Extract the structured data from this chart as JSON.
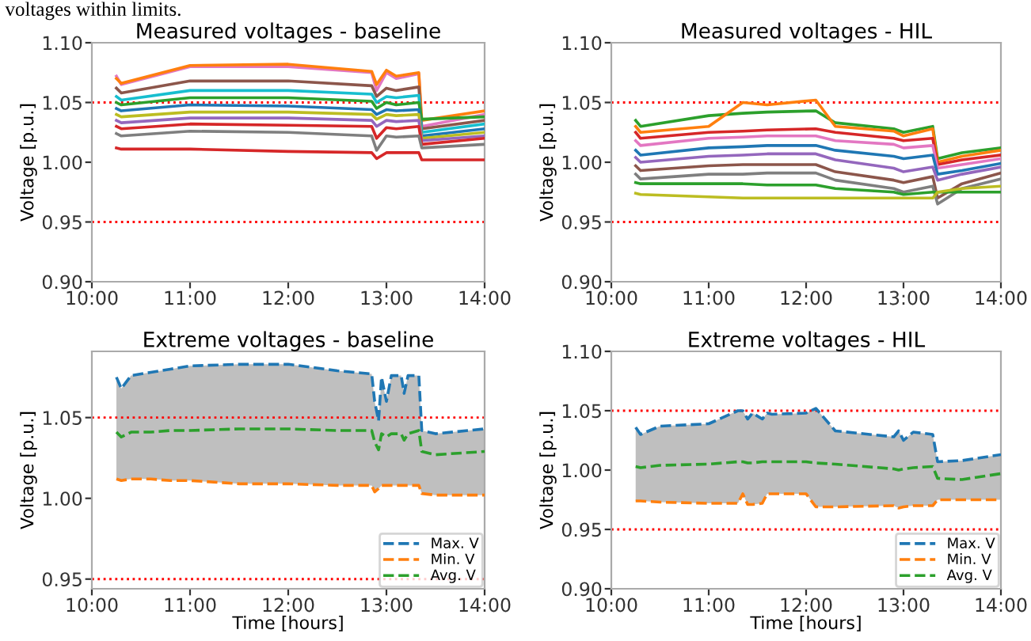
{
  "chart_data": [
    {
      "type": "line",
      "title": "Measured voltages - baseline",
      "ylabel": "Voltage [p.u.]",
      "annotations": [
        "voltages within limits."
      ],
      "x": [
        10.25,
        10.3,
        11.0,
        12.0,
        12.85,
        12.9,
        13.0,
        13.1,
        13.33,
        13.36,
        14.0
      ],
      "xlim": [
        10.0,
        14.0
      ],
      "xticks": [
        {
          "value": 10,
          "label": "10:00"
        },
        {
          "value": 11,
          "label": "11:00"
        },
        {
          "value": 12,
          "label": "12:00"
        },
        {
          "value": 13,
          "label": "13:00"
        },
        {
          "value": 14,
          "label": "14:00"
        }
      ],
      "ylim": [
        0.9,
        1.1
      ],
      "yticks": [
        {
          "value": 0.9,
          "label": "0.90"
        },
        {
          "value": 0.95,
          "label": "0.95"
        },
        {
          "value": 1.0,
          "label": "1.00"
        },
        {
          "value": 1.05,
          "label": "1.05"
        },
        {
          "value": 1.1,
          "label": "1.10"
        }
      ],
      "ref_lines": [
        {
          "axis": "y",
          "value": 1.05,
          "color": "#ff0000",
          "line_style": "dotted"
        },
        {
          "axis": "y",
          "value": 0.95,
          "color": "#ff0000",
          "line_style": "dotted"
        }
      ],
      "line_style": "solid",
      "series": [
        {
          "color": "#e377c2",
          "values": [
            1.072,
            1.065,
            1.08,
            1.08,
            1.075,
            1.06,
            1.075,
            1.07,
            1.074,
            1.03,
            1.04
          ]
        },
        {
          "color": "#ff7f0e",
          "values": [
            1.07,
            1.066,
            1.081,
            1.082,
            1.076,
            1.065,
            1.077,
            1.072,
            1.075,
            1.035,
            1.043
          ]
        },
        {
          "color": "#8c564b",
          "values": [
            1.062,
            1.058,
            1.068,
            1.068,
            1.064,
            1.055,
            1.062,
            1.06,
            1.063,
            1.028,
            1.035
          ]
        },
        {
          "color": "#17becf",
          "values": [
            1.055,
            1.052,
            1.06,
            1.06,
            1.057,
            1.05,
            1.055,
            1.054,
            1.056,
            1.025,
            1.032
          ]
        },
        {
          "color": "#2ca02c",
          "values": [
            1.05,
            1.048,
            1.054,
            1.054,
            1.051,
            1.045,
            1.05,
            1.048,
            1.05,
            1.036,
            1.038
          ]
        },
        {
          "color": "#1f77b4",
          "values": [
            1.045,
            1.043,
            1.048,
            1.047,
            1.044,
            1.04,
            1.044,
            1.043,
            1.044,
            1.022,
            1.028
          ]
        },
        {
          "color": "#bcbd22",
          "values": [
            1.04,
            1.038,
            1.042,
            1.042,
            1.04,
            1.036,
            1.04,
            1.039,
            1.04,
            1.02,
            1.025
          ]
        },
        {
          "color": "#9467bd",
          "values": [
            1.035,
            1.033,
            1.037,
            1.037,
            1.035,
            1.03,
            1.035,
            1.034,
            1.035,
            1.018,
            1.022
          ]
        },
        {
          "color": "#d62728",
          "values": [
            1.03,
            1.028,
            1.032,
            1.031,
            1.03,
            1.02,
            1.029,
            1.028,
            1.03,
            1.015,
            1.02
          ]
        },
        {
          "color": "#7f7f7f",
          "values": [
            1.024,
            1.022,
            1.026,
            1.025,
            1.022,
            1.01,
            1.022,
            1.021,
            1.022,
            1.012,
            1.015
          ]
        },
        {
          "color": "#d62728",
          "values": [
            1.012,
            1.011,
            1.011,
            1.009,
            1.008,
            1.003,
            1.008,
            1.008,
            1.008,
            1.002,
            1.002
          ]
        }
      ]
    },
    {
      "type": "line",
      "title": "Measured voltages - HIL",
      "ylabel": "Voltage [p.u.]",
      "x": [
        10.25,
        10.3,
        11.0,
        11.35,
        11.6,
        12.1,
        12.3,
        12.9,
        13.0,
        13.3,
        13.35,
        13.6,
        14.0
      ],
      "xlim": [
        10.0,
        14.0
      ],
      "xticks": [
        {
          "value": 10,
          "label": "10:00"
        },
        {
          "value": 11,
          "label": "11:00"
        },
        {
          "value": 12,
          "label": "12:00"
        },
        {
          "value": 13,
          "label": "13:00"
        },
        {
          "value": 14,
          "label": "14:00"
        }
      ],
      "ylim": [
        0.9,
        1.1
      ],
      "yticks": [
        {
          "value": 0.9,
          "label": "0.90"
        },
        {
          "value": 0.95,
          "label": "0.95"
        },
        {
          "value": 1.0,
          "label": "1.00"
        },
        {
          "value": 1.05,
          "label": "1.05"
        },
        {
          "value": 1.1,
          "label": "1.10"
        }
      ],
      "ref_lines": [
        {
          "axis": "y",
          "value": 1.05,
          "color": "#ff0000",
          "line_style": "dotted"
        },
        {
          "axis": "y",
          "value": 0.95,
          "color": "#ff0000",
          "line_style": "dotted"
        }
      ],
      "line_style": "solid",
      "series": [
        {
          "color": "#2ca02c",
          "values": [
            1.035,
            1.03,
            1.039,
            1.041,
            1.042,
            1.043,
            1.033,
            1.028,
            1.025,
            1.03,
            1.003,
            1.008,
            1.012
          ]
        },
        {
          "color": "#ff7f0e",
          "values": [
            1.03,
            1.025,
            1.03,
            1.05,
            1.048,
            1.052,
            1.03,
            1.026,
            1.022,
            1.028,
            1.0,
            1.005,
            1.01
          ]
        },
        {
          "color": "#d62728",
          "values": [
            1.025,
            1.02,
            1.025,
            1.026,
            1.027,
            1.028,
            1.025,
            1.02,
            1.018,
            1.02,
            0.998,
            1.002,
            1.006
          ]
        },
        {
          "color": "#e377c2",
          "values": [
            1.018,
            1.014,
            1.02,
            1.021,
            1.022,
            1.022,
            1.018,
            1.015,
            1.012,
            1.014,
            0.995,
            0.998,
            1.003
          ]
        },
        {
          "color": "#1f77b4",
          "values": [
            1.01,
            1.006,
            1.012,
            1.013,
            1.014,
            1.014,
            1.01,
            1.005,
            1.003,
            1.006,
            0.99,
            0.993,
            0.999
          ]
        },
        {
          "color": "#9467bd",
          "values": [
            1.004,
            1.0,
            1.005,
            1.006,
            1.007,
            1.007,
            1.002,
            0.995,
            0.992,
            0.996,
            0.985,
            0.99,
            0.996
          ]
        },
        {
          "color": "#8c564b",
          "values": [
            0.997,
            0.993,
            0.997,
            0.998,
            0.998,
            0.998,
            0.992,
            0.985,
            0.983,
            0.988,
            0.97,
            0.982,
            0.991
          ]
        },
        {
          "color": "#7f7f7f",
          "values": [
            0.99,
            0.986,
            0.99,
            0.99,
            0.991,
            0.991,
            0.985,
            0.978,
            0.975,
            0.98,
            0.965,
            0.978,
            0.986
          ]
        },
        {
          "color": "#2ca02c",
          "values": [
            0.983,
            0.982,
            0.982,
            0.982,
            0.981,
            0.981,
            0.978,
            0.975,
            0.973,
            0.975,
            0.975,
            0.975,
            0.975
          ]
        },
        {
          "color": "#bcbd22",
          "values": [
            0.974,
            0.973,
            0.971,
            0.97,
            0.97,
            0.97,
            0.97,
            0.97,
            0.97,
            0.97,
            0.975,
            0.978,
            0.98
          ]
        }
      ]
    },
    {
      "type": "line",
      "title": "Extreme voltages - baseline",
      "ylabel": "Voltage [p.u.]",
      "xlabel": "Time [hours]",
      "x": [
        10.25,
        10.3,
        10.4,
        10.6,
        10.8,
        11.0,
        11.5,
        12.0,
        12.5,
        12.85,
        12.88,
        12.92,
        12.95,
        13.0,
        13.05,
        13.15,
        13.18,
        13.22,
        13.33,
        13.36,
        13.5,
        14.0
      ],
      "xlim": [
        10.0,
        14.0
      ],
      "xticks": [
        {
          "value": 10,
          "label": "10:00"
        },
        {
          "value": 11,
          "label": "11:00"
        },
        {
          "value": 12,
          "label": "12:00"
        },
        {
          "value": 13,
          "label": "13:00"
        },
        {
          "value": 14,
          "label": "14:00"
        }
      ],
      "ylim": [
        0.944,
        1.091
      ],
      "yticks": [
        {
          "value": 0.95,
          "label": "0.95"
        },
        {
          "value": 1.0,
          "label": "1.00"
        },
        {
          "value": 1.05,
          "label": "1.05"
        }
      ],
      "ref_lines": [
        {
          "axis": "y",
          "value": 1.05,
          "color": "#ff0000",
          "line_style": "dotted"
        },
        {
          "axis": "y",
          "value": 0.95,
          "color": "#ff0000",
          "line_style": "dotted"
        }
      ],
      "line_style": "dashed",
      "legend": "bottom right",
      "series": [
        {
          "name": "Max. V",
          "color": "#1f77b4",
          "values": [
            1.075,
            1.068,
            1.076,
            1.078,
            1.08,
            1.082,
            1.083,
            1.083,
            1.079,
            1.077,
            1.06,
            1.048,
            1.075,
            1.06,
            1.076,
            1.076,
            1.065,
            1.076,
            1.076,
            1.042,
            1.04,
            1.043
          ]
        },
        {
          "name": "Min. V",
          "color": "#ff7f0e",
          "values": [
            1.012,
            1.011,
            1.012,
            1.012,
            1.011,
            1.011,
            1.009,
            1.009,
            1.008,
            1.008,
            1.004,
            1.006,
            1.008,
            1.008,
            1.008,
            1.008,
            1.008,
            1.008,
            1.008,
            1.003,
            1.002,
            1.002
          ]
        },
        {
          "name": "Avg. V",
          "color": "#2ca02c",
          "values": [
            1.041,
            1.038,
            1.041,
            1.041,
            1.042,
            1.042,
            1.043,
            1.043,
            1.042,
            1.042,
            1.035,
            1.03,
            1.04,
            1.038,
            1.04,
            1.04,
            1.036,
            1.04,
            1.042,
            1.029,
            1.027,
            1.029
          ],
          "lower": [
            1.012,
            1.011,
            1.012,
            1.012,
            1.011,
            1.011,
            1.009,
            1.009,
            1.008,
            1.008,
            1.004,
            1.006,
            1.008,
            1.008,
            1.008,
            1.008,
            1.008,
            1.008,
            1.008,
            1.003,
            1.002,
            1.002
          ],
          "upper": [
            1.075,
            1.068,
            1.076,
            1.078,
            1.08,
            1.082,
            1.083,
            1.083,
            1.079,
            1.077,
            1.06,
            1.048,
            1.075,
            1.06,
            1.076,
            1.076,
            1.065,
            1.076,
            1.076,
            1.042,
            1.04,
            1.043
          ]
        }
      ]
    },
    {
      "type": "line",
      "title": "Extreme voltages - HIL",
      "ylabel": "Voltage [p.u.]",
      "xlabel": "Time [hours]",
      "x": [
        10.25,
        10.3,
        10.5,
        11.0,
        11.3,
        11.35,
        11.4,
        11.45,
        11.55,
        11.6,
        11.65,
        12.0,
        12.1,
        12.3,
        12.9,
        12.95,
        13.0,
        13.1,
        13.3,
        13.35,
        13.6,
        14.0
      ],
      "xlim": [
        10.0,
        14.0
      ],
      "xticks": [
        {
          "value": 10,
          "label": "10:00"
        },
        {
          "value": 11,
          "label": "11:00"
        },
        {
          "value": 12,
          "label": "12:00"
        },
        {
          "value": 13,
          "label": "13:00"
        },
        {
          "value": 14,
          "label": "14:00"
        }
      ],
      "ylim": [
        0.9,
        1.1
      ],
      "yticks": [
        {
          "value": 0.9,
          "label": "0.90"
        },
        {
          "value": 0.95,
          "label": "0.95"
        },
        {
          "value": 1.0,
          "label": "1.00"
        },
        {
          "value": 1.05,
          "label": "1.05"
        },
        {
          "value": 1.1,
          "label": "1.10"
        }
      ],
      "ref_lines": [
        {
          "axis": "y",
          "value": 1.05,
          "color": "#ff0000",
          "line_style": "dotted"
        },
        {
          "axis": "y",
          "value": 0.95,
          "color": "#ff0000",
          "line_style": "dotted"
        }
      ],
      "line_style": "dashed",
      "legend": "bottom right",
      "series": [
        {
          "name": "Max. V",
          "color": "#1f77b4",
          "values": [
            1.036,
            1.03,
            1.037,
            1.039,
            1.05,
            1.05,
            1.043,
            1.048,
            1.043,
            1.048,
            1.047,
            1.048,
            1.052,
            1.033,
            1.028,
            1.033,
            1.025,
            1.032,
            1.03,
            1.007,
            1.008,
            1.013
          ]
        },
        {
          "name": "Min. V",
          "color": "#ff7f0e",
          "values": [
            0.974,
            0.974,
            0.973,
            0.972,
            0.972,
            0.98,
            0.971,
            0.971,
            0.972,
            0.98,
            0.98,
            0.98,
            0.969,
            0.969,
            0.97,
            0.968,
            0.969,
            0.97,
            0.97,
            0.975,
            0.975,
            0.975
          ]
        },
        {
          "name": "Avg. V",
          "color": "#2ca02c",
          "values": [
            1.003,
            1.002,
            1.004,
            1.005,
            1.007,
            1.007,
            1.006,
            1.006,
            1.007,
            1.007,
            1.007,
            1.007,
            1.006,
            1.005,
            1.001,
            1.0,
            1.001,
            1.002,
            1.003,
            0.993,
            0.992,
            0.997
          ],
          "lower": [
            0.974,
            0.974,
            0.973,
            0.972,
            0.972,
            0.98,
            0.971,
            0.971,
            0.972,
            0.98,
            0.98,
            0.98,
            0.969,
            0.969,
            0.97,
            0.968,
            0.969,
            0.97,
            0.97,
            0.975,
            0.975,
            0.975
          ],
          "upper": [
            1.036,
            1.03,
            1.037,
            1.039,
            1.05,
            1.05,
            1.043,
            1.048,
            1.043,
            1.048,
            1.047,
            1.048,
            1.052,
            1.033,
            1.028,
            1.033,
            1.025,
            1.032,
            1.03,
            1.007,
            1.008,
            1.013
          ]
        }
      ]
    }
  ]
}
